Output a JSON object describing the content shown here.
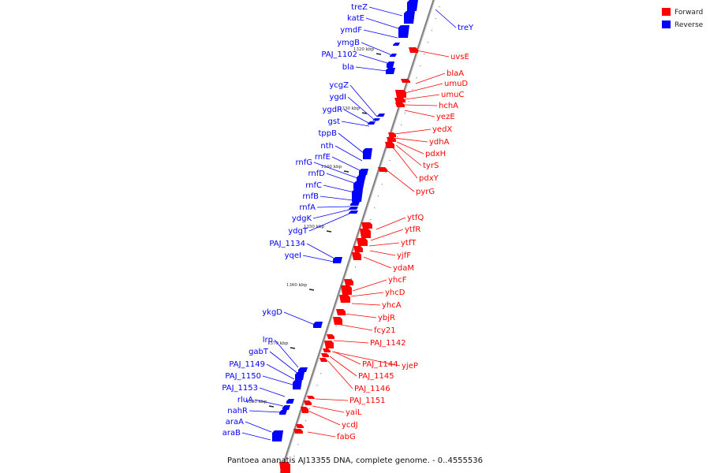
{
  "caption": "Pantoea ananatis AJ13355 DNA, complete genome. - 0..4555536",
  "legend": {
    "forward_label": "Forward",
    "reverse_label": "Reverse",
    "forward_color": "#ff0000",
    "reverse_color": "#0000ff"
  },
  "ticks": [
    "1320 kbp",
    "1330 kbp",
    "1340 kbp",
    "1350 kbp",
    "1360 kbp",
    "1370 kbp",
    "1380 kbp"
  ],
  "reverse_genes": [
    "treZ",
    "katE",
    "ymdF",
    "ymgB",
    "PAJ_1102",
    "bla",
    "ycgZ",
    "ygdI",
    "ygdR",
    "gst",
    "tppB",
    "nth",
    "rnfE",
    "rnfG",
    "rnfD",
    "rnfC",
    "rnfB",
    "rnfA",
    "ydgK",
    "ydgT",
    "PAJ_1134",
    "yqeI",
    "ykgD",
    "lrp",
    "gabT",
    "PAJ_1149",
    "PAJ_1150",
    "PAJ_1153",
    "rluA",
    "nahR",
    "araA",
    "araB",
    "treY"
  ],
  "forward_genes": [
    "uvsE",
    "blaA",
    "umuD",
    "umuC",
    "hchA",
    "yezE",
    "yedX",
    "ydhA",
    "pdxH",
    "tyrS",
    "pdxY",
    "pyrG",
    "ytfQ",
    "ytfR",
    "ytfT",
    "yjfF",
    "ydaM",
    "yhcF",
    "yhcD",
    "yhcA",
    "ybjR",
    "fcy21",
    "PAJ_1142",
    "PAJ_1144",
    "yjeP",
    "PAJ_1145",
    "PAJ_1146",
    "PAJ_1151",
    "yaiL",
    "ycdJ",
    "fabG"
  ]
}
